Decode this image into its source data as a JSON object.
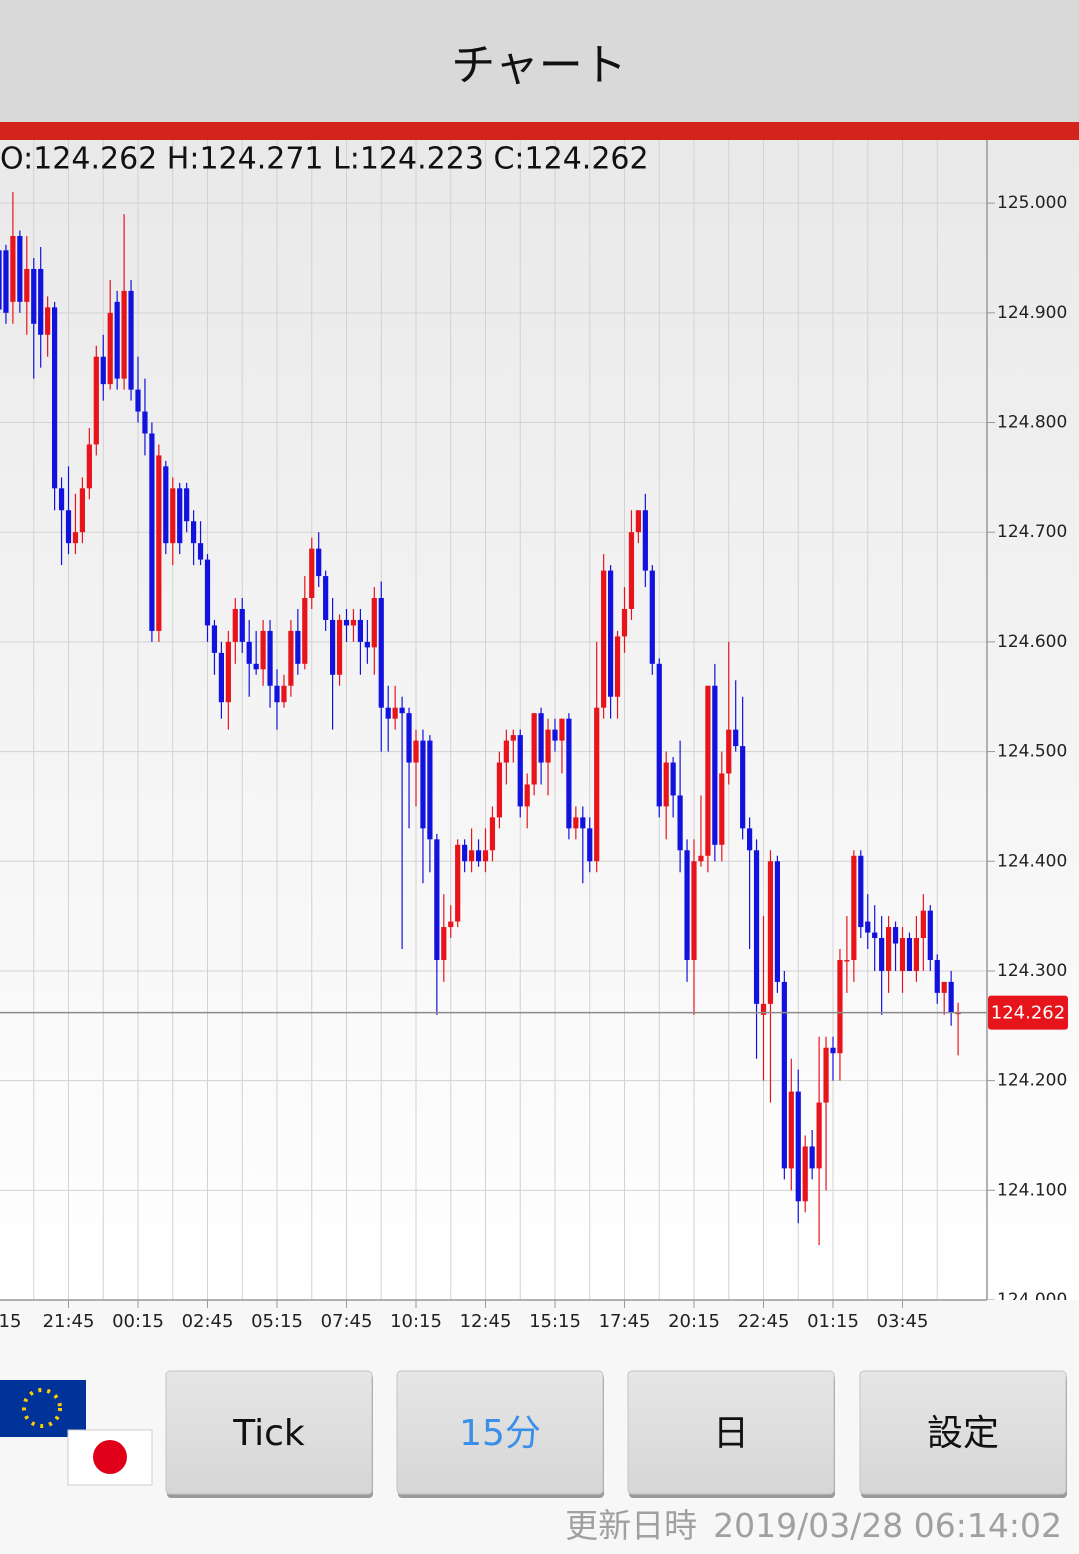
{
  "header": {
    "title": "チャート"
  },
  "buttons": [
    "Tick",
    "15分",
    "日",
    "設定"
  ],
  "updated": {
    "label": "更新日時",
    "value": "2019/03/28 06:14:02"
  },
  "chart_data": {
    "type": "candlestick",
    "ohlc_label": "O:124.262 H:124.271 L:124.223 C:124.262",
    "up_color": "#e8141b",
    "down_color": "#1212de",
    "current_price": 124.262,
    "grid": true,
    "ylim": [
      124.0,
      125.053
    ],
    "yticks": [
      {
        "value": 124.0,
        "label": "124.000"
      },
      {
        "value": 124.1,
        "label": "124.100"
      },
      {
        "value": 124.2,
        "label": "124.200"
      },
      {
        "value": 124.3,
        "label": "124.300"
      },
      {
        "value": 124.4,
        "label": "124.400"
      },
      {
        "value": 124.5,
        "label": "124.500"
      },
      {
        "value": 124.6,
        "label": "124.600"
      },
      {
        "value": 124.7,
        "label": "124.700"
      },
      {
        "value": 124.8,
        "label": "124.800"
      },
      {
        "value": 124.9,
        "label": "124.900"
      },
      {
        "value": 125.0,
        "label": "125.000"
      }
    ],
    "categories": [
      "15",
      null,
      null,
      null,
      null,
      null,
      null,
      null,
      null,
      null,
      "21:45",
      null,
      null,
      null,
      null,
      null,
      null,
      null,
      null,
      null,
      "00:15",
      null,
      null,
      null,
      null,
      null,
      null,
      null,
      null,
      null,
      "02:45",
      null,
      null,
      null,
      null,
      null,
      null,
      null,
      null,
      null,
      "05:15",
      null,
      null,
      null,
      null,
      null,
      null,
      null,
      null,
      null,
      "07:45",
      null,
      null,
      null,
      null,
      null,
      null,
      null,
      null,
      null,
      "10:15",
      null,
      null,
      null,
      null,
      null,
      null,
      null,
      null,
      null,
      "12:45",
      null,
      null,
      null,
      null,
      null,
      null,
      null,
      null,
      null,
      "15:15",
      null,
      null,
      null,
      null,
      null,
      null,
      null,
      null,
      null,
      "17:45",
      null,
      null,
      null,
      null,
      null,
      null,
      null,
      null,
      null,
      "20:15",
      null,
      null,
      null,
      null,
      null,
      null,
      null,
      null,
      null,
      "22:45",
      null,
      null,
      null,
      null,
      null,
      null,
      null,
      null,
      null,
      "01:15",
      null,
      null,
      null,
      null,
      null,
      null,
      null,
      null,
      null,
      "03:45",
      null,
      null,
      null,
      null,
      null,
      null,
      null,
      null
    ],
    "open": [
      124.957,
      124.957,
      124.91,
      124.97,
      124.91,
      124.94,
      124.94,
      124.88,
      124.905,
      124.74,
      124.72,
      124.69,
      124.7,
      124.74,
      124.78,
      124.86,
      124.835,
      124.91,
      124.84,
      124.92,
      124.83,
      124.81,
      124.79,
      124.61,
      124.76,
      124.69,
      124.74,
      124.74,
      124.71,
      124.69,
      124.675,
      124.615,
      124.59,
      124.545,
      124.6,
      124.63,
      124.6,
      124.58,
      124.575,
      124.61,
      124.56,
      124.545,
      124.56,
      124.61,
      124.58,
      124.64,
      124.685,
      124.66,
      124.62,
      124.57,
      124.62,
      124.615,
      124.62,
      124.6,
      124.595,
      124.64,
      124.54,
      124.53,
      124.54,
      124.535,
      124.49,
      124.51,
      124.51,
      124.42,
      124.31,
      124.34,
      124.345,
      124.415,
      124.4,
      124.41,
      124.4,
      124.41,
      124.44,
      124.49,
      124.51,
      124.515,
      124.45,
      124.47,
      124.535,
      124.49,
      124.52,
      124.51,
      124.53,
      124.43,
      124.44,
      124.43,
      124.4,
      124.54,
      124.665,
      124.55,
      124.605,
      124.63,
      124.7,
      124.72,
      124.665,
      124.58,
      124.45,
      124.49,
      124.46,
      124.41,
      124.31,
      124.4,
      124.405,
      124.56,
      124.415,
      124.48,
      124.52,
      124.505,
      124.43,
      124.41,
      124.26,
      124.27,
      124.4,
      124.29,
      124.12,
      124.19,
      124.09,
      124.14,
      124.12,
      124.18,
      124.23,
      124.225,
      124.31,
      124.31,
      124.405,
      124.345,
      124.335,
      124.33,
      124.3,
      124.34,
      124.3,
      124.33,
      124.3,
      124.33,
      124.355,
      124.31,
      124.28,
      124.29,
      124.262
    ],
    "high": [
      124.962,
      124.962,
      125.01,
      124.975,
      124.97,
      124.95,
      124.96,
      124.915,
      124.91,
      124.75,
      124.76,
      124.735,
      124.75,
      124.795,
      124.87,
      124.88,
      124.93,
      124.92,
      124.99,
      124.93,
      124.86,
      124.84,
      124.8,
      124.78,
      124.765,
      124.75,
      124.745,
      124.745,
      124.72,
      124.71,
      124.68,
      124.62,
      124.6,
      124.61,
      124.64,
      124.64,
      124.62,
      124.61,
      124.62,
      124.62,
      124.575,
      124.57,
      124.62,
      124.63,
      124.66,
      124.695,
      124.7,
      124.665,
      124.64,
      124.625,
      124.63,
      124.63,
      124.63,
      124.62,
      124.65,
      124.655,
      124.56,
      124.56,
      124.55,
      124.54,
      124.52,
      124.52,
      124.515,
      124.425,
      124.37,
      124.36,
      124.42,
      124.42,
      124.43,
      124.42,
      124.43,
      124.45,
      124.5,
      124.52,
      124.52,
      124.52,
      124.48,
      124.535,
      124.54,
      124.53,
      124.53,
      124.53,
      124.535,
      124.45,
      124.45,
      124.44,
      124.6,
      124.68,
      124.67,
      124.61,
      124.65,
      124.72,
      124.72,
      124.735,
      124.67,
      124.585,
      124.5,
      124.495,
      124.51,
      124.42,
      124.42,
      124.46,
      124.56,
      124.58,
      124.5,
      124.6,
      124.565,
      124.55,
      124.44,
      124.42,
      124.35,
      124.41,
      124.405,
      124.3,
      124.22,
      124.21,
      124.15,
      124.155,
      124.24,
      124.24,
      124.24,
      124.32,
      124.35,
      124.41,
      124.41,
      124.37,
      124.36,
      124.35,
      124.35,
      124.345,
      124.34,
      124.335,
      124.35,
      124.37,
      124.36,
      124.315,
      124.29,
      124.3,
      124.271
    ],
    "low": [
      124.894,
      124.89,
      124.89,
      124.9,
      124.88,
      124.84,
      124.85,
      124.86,
      124.72,
      124.67,
      124.68,
      124.68,
      124.69,
      124.73,
      124.77,
      124.82,
      124.83,
      124.83,
      124.83,
      124.82,
      124.8,
      124.77,
      124.6,
      124.6,
      124.68,
      124.67,
      124.68,
      124.7,
      124.67,
      124.67,
      124.6,
      124.57,
      124.53,
      124.52,
      124.58,
      124.59,
      124.55,
      124.57,
      124.56,
      124.54,
      124.52,
      124.54,
      124.55,
      124.57,
      124.575,
      124.63,
      124.65,
      124.61,
      124.52,
      124.56,
      124.6,
      124.6,
      124.57,
      124.58,
      124.57,
      124.5,
      124.5,
      124.52,
      124.32,
      124.43,
      124.45,
      124.38,
      124.39,
      124.26,
      124.29,
      124.33,
      124.34,
      124.39,
      124.39,
      124.395,
      124.39,
      124.4,
      124.43,
      124.47,
      124.49,
      124.44,
      124.43,
      124.46,
      124.47,
      124.46,
      124.5,
      124.48,
      124.42,
      124.42,
      124.38,
      124.39,
      124.39,
      124.53,
      124.53,
      124.53,
      124.59,
      124.62,
      124.69,
      124.65,
      124.57,
      124.44,
      124.42,
      124.44,
      124.39,
      124.29,
      124.26,
      124.395,
      124.39,
      124.4,
      124.4,
      124.47,
      124.5,
      124.42,
      124.32,
      124.22,
      124.2,
      124.18,
      124.28,
      124.11,
      124.1,
      124.07,
      124.08,
      124.11,
      124.05,
      124.1,
      124.2,
      124.2,
      124.28,
      124.29,
      124.33,
      124.32,
      124.3,
      124.26,
      124.28,
      124.3,
      124.28,
      124.3,
      124.29,
      124.3,
      124.3,
      124.27,
      124.26,
      124.25,
      124.223
    ],
    "close": [
      124.903,
      124.9,
      124.97,
      124.91,
      124.94,
      124.89,
      124.88,
      124.905,
      124.74,
      124.72,
      124.69,
      124.7,
      124.74,
      124.78,
      124.86,
      124.835,
      124.9,
      124.84,
      124.92,
      124.83,
      124.81,
      124.79,
      124.61,
      124.77,
      124.69,
      124.74,
      124.69,
      124.71,
      124.69,
      124.675,
      124.615,
      124.59,
      124.545,
      124.6,
      124.63,
      124.6,
      124.58,
      124.575,
      124.61,
      124.56,
      124.545,
      124.56,
      124.61,
      124.58,
      124.64,
      124.685,
      124.66,
      124.62,
      124.57,
      124.62,
      124.615,
      124.62,
      124.6,
      124.595,
      124.64,
      124.54,
      124.53,
      124.54,
      124.535,
      124.49,
      124.51,
      124.43,
      124.42,
      124.31,
      124.34,
      124.345,
      124.415,
      124.4,
      124.41,
      124.4,
      124.41,
      124.44,
      124.49,
      124.51,
      124.515,
      124.45,
      124.47,
      124.535,
      124.49,
      124.52,
      124.51,
      124.53,
      124.43,
      124.44,
      124.43,
      124.4,
      124.54,
      124.665,
      124.55,
      124.605,
      124.63,
      124.7,
      124.72,
      124.665,
      124.58,
      124.45,
      124.49,
      124.46,
      124.41,
      124.31,
      124.4,
      124.405,
      124.56,
      124.415,
      124.48,
      124.52,
      124.505,
      124.43,
      124.41,
      124.27,
      124.27,
      124.4,
      124.29,
      124.12,
      124.19,
      124.09,
      124.14,
      124.12,
      124.18,
      124.23,
      124.225,
      124.31,
      124.31,
      124.405,
      124.34,
      124.335,
      124.33,
      124.3,
      124.34,
      124.325,
      124.33,
      124.3,
      124.33,
      124.355,
      124.31,
      124.28,
      124.29,
      124.262,
      124.262
    ]
  }
}
